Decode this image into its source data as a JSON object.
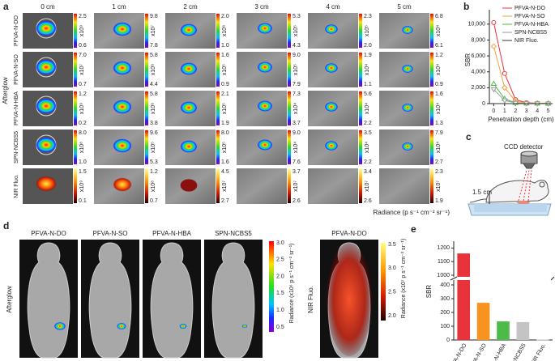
{
  "panel_a": {
    "label": "a",
    "columns": [
      "0 cm",
      "1 cm",
      "2 cm",
      "3 cm",
      "4 cm",
      "5 cm"
    ],
    "group_label": "Afterglow",
    "radiance_label": "Radiance (p s⁻¹ cm⁻² sr⁻¹)",
    "rows": [
      {
        "name": "PFVA-N-DO",
        "cells": [
          {
            "max": "2.5",
            "exp": "x10⁹",
            "min": "0.6"
          },
          {
            "max": "9.8",
            "exp": "x10⁷",
            "min": "7.8"
          },
          {
            "max": "2.0",
            "exp": "x10⁶",
            "min": "1.0"
          },
          {
            "max": "5.3",
            "exp": "x10⁵",
            "min": "4.3"
          },
          {
            "max": "2.3",
            "exp": "x10⁵",
            "min": "2.0"
          },
          {
            "max": "6.8",
            "exp": "x10⁴",
            "min": "6.1"
          }
        ]
      },
      {
        "name": "PFVA-N-SO",
        "cells": [
          {
            "max": "7.0",
            "exp": "x10⁷",
            "min": "0.7"
          },
          {
            "max": "5.8",
            "exp": "x10⁶",
            "min": "4.4"
          },
          {
            "max": "1.6",
            "exp": "x10⁵",
            "min": "0.9"
          },
          {
            "max": "9.0",
            "exp": "x10⁵",
            "min": "7.9"
          },
          {
            "max": "1.9",
            "exp": "x10⁴",
            "min": "1.1"
          },
          {
            "max": "1.2",
            "exp": "x10⁴",
            "min": "0.9"
          }
        ]
      },
      {
        "name": "PFVA-N-HBA",
        "cells": [
          {
            "max": "1.2",
            "exp": "x10⁹",
            "min": "0.2"
          },
          {
            "max": "5.8",
            "exp": "x10⁶",
            "min": "3.8"
          },
          {
            "max": "2.1",
            "exp": "x10⁵",
            "min": "1.9"
          },
          {
            "max": "7.3",
            "exp": "x10⁴",
            "min": "3.7"
          },
          {
            "max": "5.6",
            "exp": "x10⁴",
            "min": "2.2"
          },
          {
            "max": "1.6",
            "exp": "x10⁴",
            "min": "1.3"
          }
        ]
      },
      {
        "name": "SPN-NCBS5",
        "cells": [
          {
            "max": "8.0",
            "exp": "x10⁸",
            "min": "1.0"
          },
          {
            "max": "9.6",
            "exp": "x10⁵",
            "min": "5.3"
          },
          {
            "max": "8.0",
            "exp": "x10⁵",
            "min": "1.6"
          },
          {
            "max": "9.0",
            "exp": "x10⁴",
            "min": "7.6"
          },
          {
            "max": "3.5",
            "exp": "x10⁴",
            "min": "2.2"
          },
          {
            "max": "7.9",
            "exp": "x10⁴",
            "min": "2.7"
          }
        ]
      },
      {
        "name": "NIR Fluo.",
        "cells": [
          {
            "max": "1.5",
            "exp": "x10⁹",
            "min": "0.1"
          },
          {
            "max": "1.2",
            "exp": "x10⁸",
            "min": "0.7"
          },
          {
            "max": "4.5",
            "exp": "x10⁷",
            "min": "2.7"
          },
          {
            "max": "3.7",
            "exp": "x10⁷",
            "min": "2.6"
          },
          {
            "max": "3.4",
            "exp": "x10⁷",
            "min": "2.6"
          },
          {
            "max": "2.3",
            "exp": "x10⁷",
            "min": "1.9"
          }
        ]
      }
    ]
  },
  "chart_data": [
    {
      "type": "line",
      "label": "b",
      "xlabel": "Penetration depth (cm)",
      "ylabel": "SBR",
      "legend": "upper right",
      "x": [
        0,
        1,
        2,
        3,
        4,
        5
      ],
      "xlim": [
        -0.4,
        5.4
      ],
      "xticks": [
        0,
        1,
        2,
        3,
        4,
        5
      ],
      "ylim": [
        0,
        11000
      ],
      "yticks": [
        0,
        {
          "value": 2000,
          "label": "2,000"
        },
        {
          "value": 4000,
          "label": "4,000"
        },
        {
          "value": 6000,
          "label": "6,000"
        },
        {
          "value": 8000,
          "label": "8,000"
        },
        {
          "value": 10000,
          "label": "10,000"
        }
      ],
      "series": [
        {
          "name": "PFVA-N-DO",
          "color": "#e8333b",
          "marker": "circle",
          "values": [
            10200,
            3800,
            500,
            120,
            50,
            20
          ]
        },
        {
          "name": "PFVA-N-SO",
          "color": "#f5a03a",
          "marker": "diamond",
          "values": [
            7200,
            2000,
            300,
            60,
            20,
            10
          ]
        },
        {
          "name": "PFVA-N-HBA",
          "color": "#4cbb47",
          "marker": "triangle",
          "values": [
            2500,
            600,
            100,
            30,
            10,
            5
          ]
        },
        {
          "name": "SPN-NCBS5",
          "color": "#999999",
          "marker": "triangle-down",
          "values": [
            1800,
            400,
            80,
            20,
            10,
            5
          ]
        },
        {
          "name": "NIR Fluo.",
          "color": "#333333",
          "marker": "minus",
          "values": [
            5,
            2,
            1,
            1,
            1,
            1
          ]
        }
      ]
    },
    {
      "type": "bar",
      "label": "e",
      "ylabel": "SBR",
      "categories": [
        "PFVA-N-DO",
        "PFVA-N-SO",
        "PFVA-N-HBA",
        "SPN-NCBS5",
        "NIR Fluo."
      ],
      "values": [
        1160,
        270,
        135,
        130,
        3
      ],
      "colors": [
        "#e8333b",
        "#f7931e",
        "#4cbb47",
        "#c4c4c4",
        "#c4c4c4"
      ],
      "ylim": [
        0,
        1250
      ],
      "ybreak": [
        400,
        1000
      ],
      "yticks": [
        0,
        100,
        200,
        300,
        400,
        1000,
        1100,
        1200
      ]
    }
  ],
  "panel_c": {
    "label": "c",
    "detector": "CCD detector",
    "depth": "1.5 cm"
  },
  "panel_d": {
    "label": "d",
    "afterglow": {
      "side_label": "Afterglow",
      "titles": [
        "PFVA-N-DO",
        "PFVA-N-SO",
        "PFVA-N-HBA",
        "SPN-NCBS5"
      ],
      "cbar_ticks": [
        "3.0",
        "2.5",
        "2.0",
        "1.5",
        "1.0",
        "0.5"
      ],
      "cbar_label": "Radiance (x10⁶ p s⁻¹ cm⁻² sr⁻¹)"
    },
    "fluo": {
      "side_label": "NIR Fluo.",
      "titles": [
        "PFVA-N-DO"
      ],
      "cbar_ticks": [
        "3.5",
        "3.0",
        "2.5",
        "2.0"
      ],
      "cbar_label": "Radiance (x10⁷ p s⁻¹ cm⁻² sr⁻¹)"
    }
  }
}
